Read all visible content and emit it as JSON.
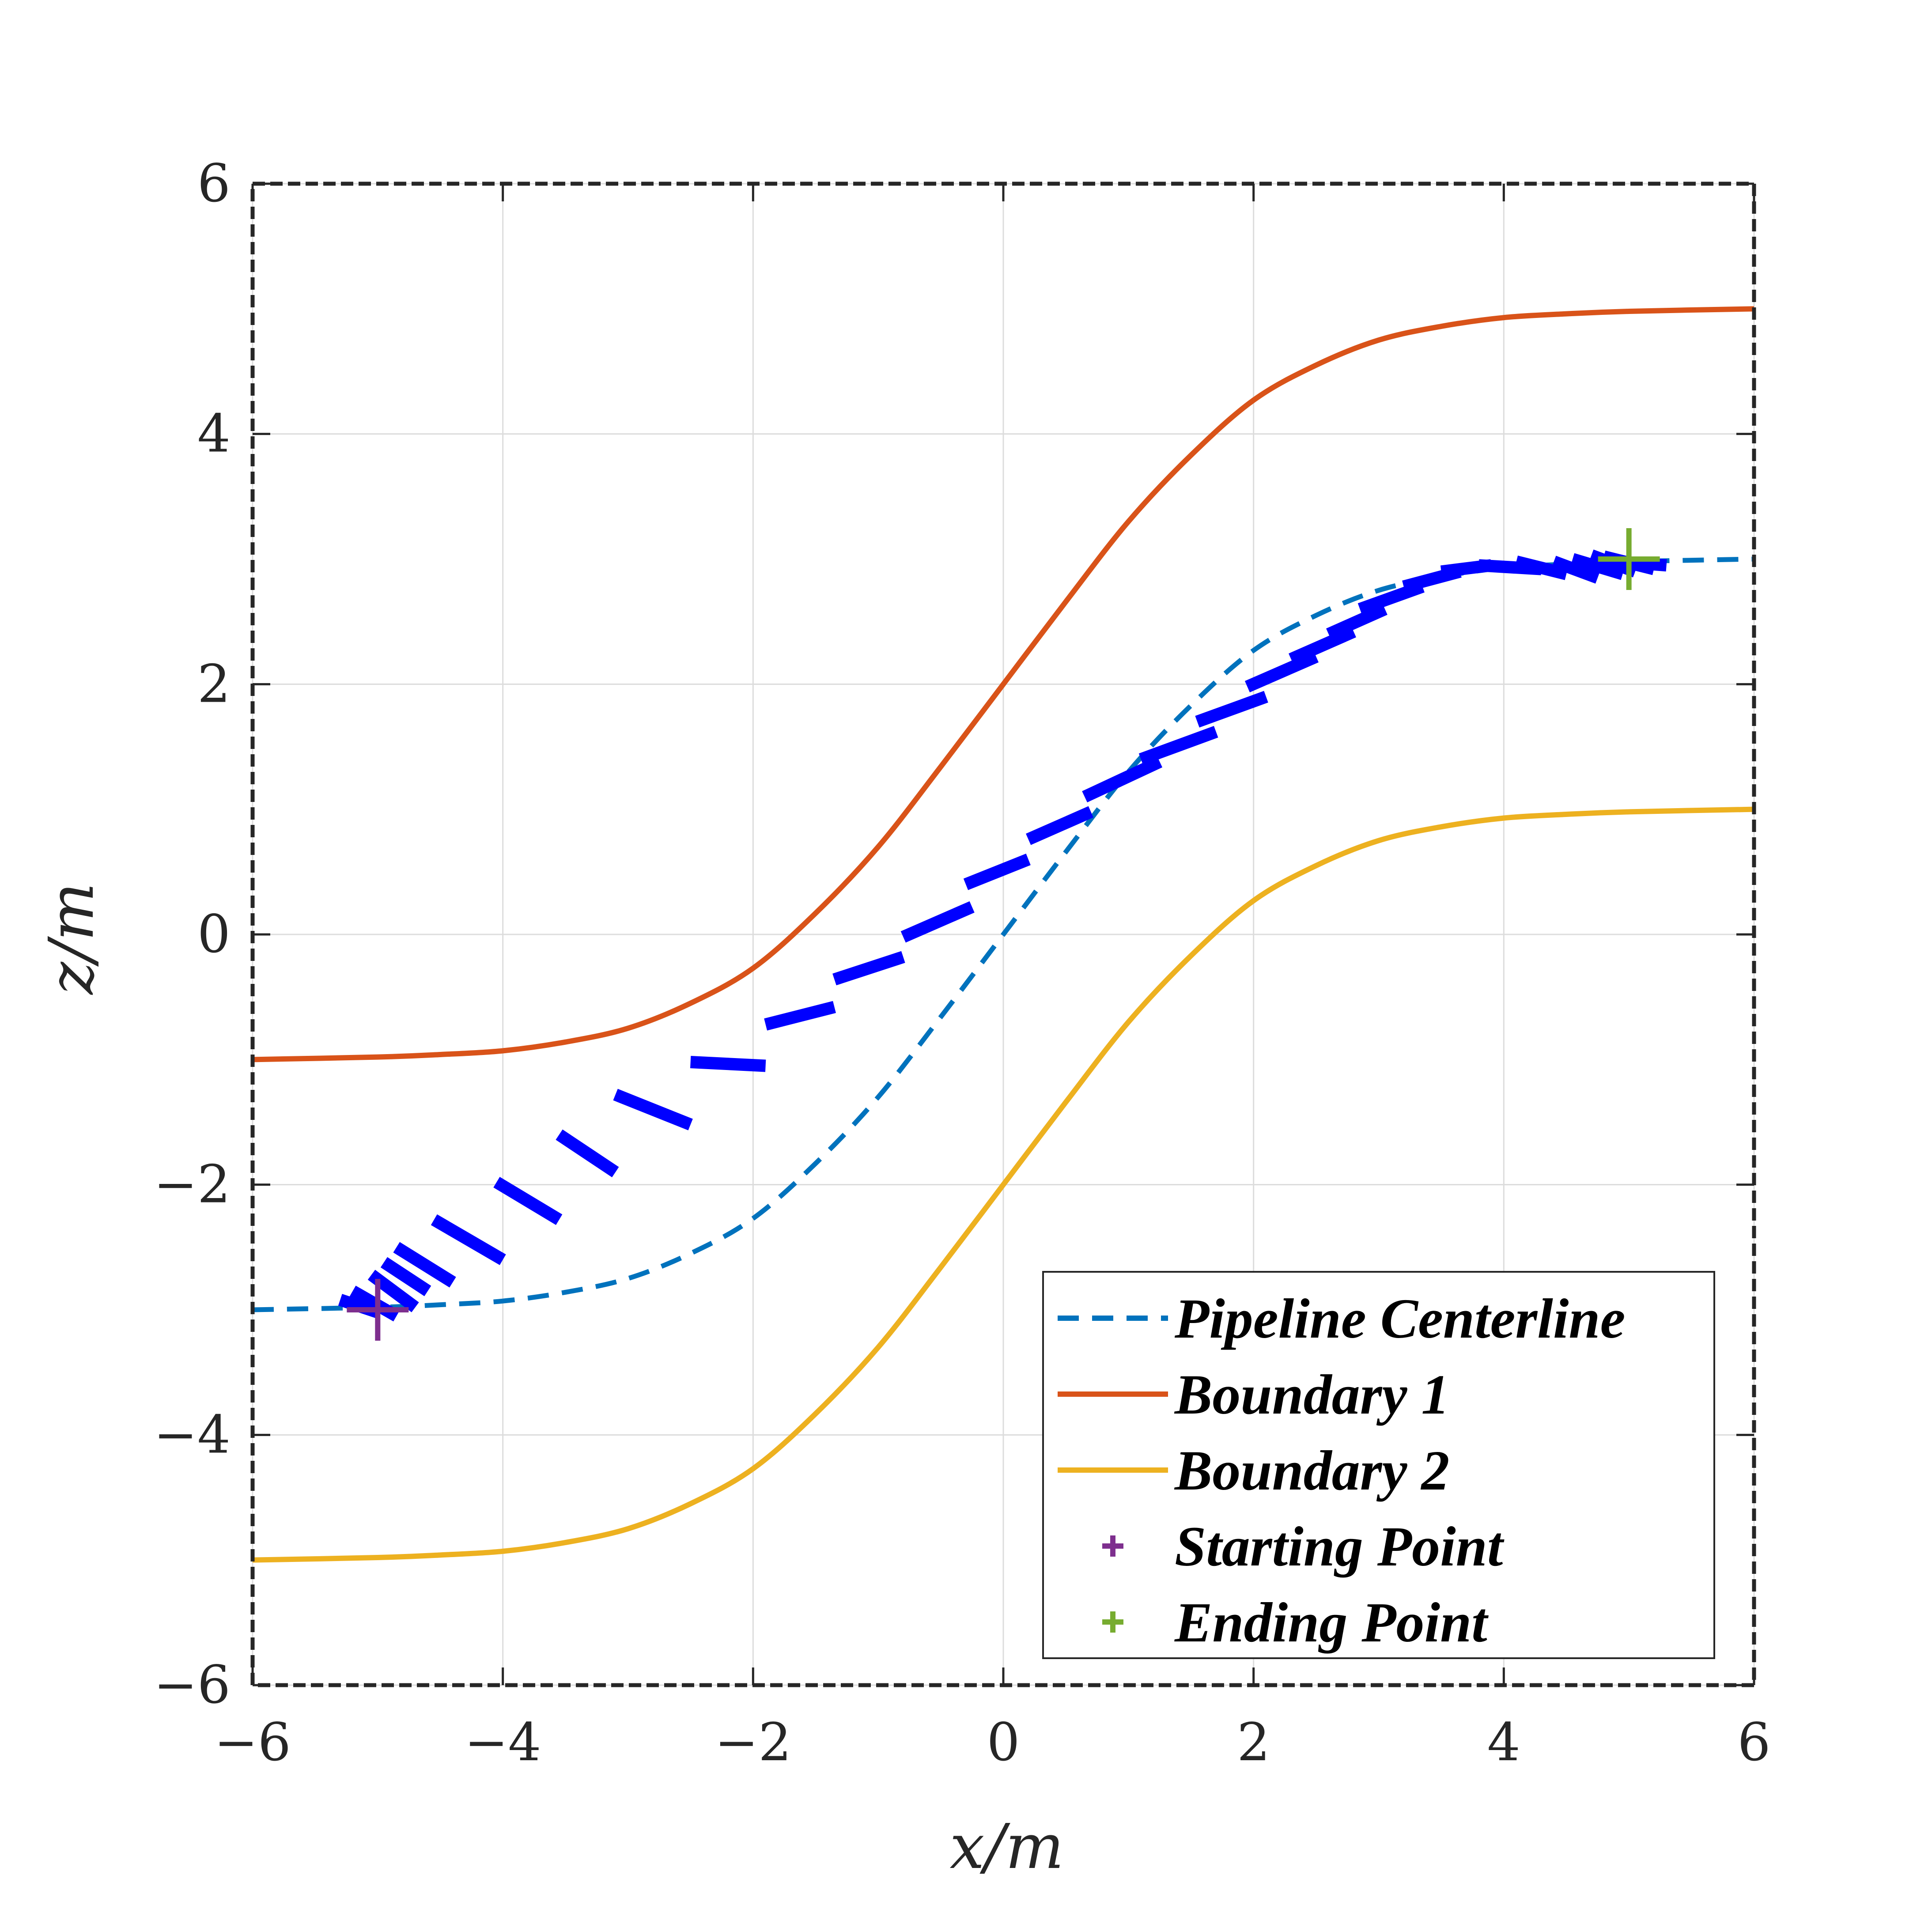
{
  "chart_data": {
    "type": "line",
    "title": "",
    "xlabel": "x/m",
    "ylabel": "z/m",
    "xlim": [
      -6,
      6
    ],
    "ylim": [
      -6,
      6
    ],
    "xticks": [
      -6,
      -4,
      -2,
      0,
      2,
      4,
      6
    ],
    "yticks": [
      -6,
      -4,
      -2,
      0,
      2,
      4,
      6
    ],
    "xtick_labels": [
      "−6",
      "−4",
      "−2",
      "0",
      "2",
      "4",
      "6"
    ],
    "ytick_labels": [
      "−6",
      "−4",
      "−2",
      "0",
      "2",
      "4",
      "6"
    ],
    "grid": true,
    "legend_position": "bottom-right",
    "series": [
      {
        "name": "Pipeline Centerline",
        "color": "#0072BD",
        "style": "dashed",
        "x": [
          -6,
          -5,
          -4.5,
          -4,
          -3.5,
          -3,
          -2.5,
          -2,
          -1.5,
          -1,
          -0.5,
          0,
          0.5,
          1,
          1.5,
          2,
          2.5,
          3,
          3.5,
          4,
          4.5,
          5,
          6
        ],
        "y": [
          -3.0,
          -2.98,
          -2.96,
          -2.93,
          -2.86,
          -2.75,
          -2.55,
          -2.27,
          -1.83,
          -1.3,
          -0.66,
          0.0,
          0.66,
          1.3,
          1.83,
          2.27,
          2.55,
          2.75,
          2.86,
          2.93,
          2.96,
          2.98,
          3.0
        ]
      },
      {
        "name": "Boundary 1",
        "color": "#D95319",
        "style": "solid",
        "x": [
          -6,
          -5,
          -4.5,
          -4,
          -3.5,
          -3,
          -2.5,
          -2,
          -1.5,
          -1,
          -0.5,
          0,
          0.5,
          1,
          1.5,
          2,
          2.5,
          3,
          3.5,
          4,
          4.5,
          5,
          6
        ],
        "y": [
          -1.0,
          -0.98,
          -0.96,
          -0.93,
          -0.86,
          -0.75,
          -0.55,
          -0.27,
          0.17,
          0.7,
          1.34,
          2.0,
          2.66,
          3.3,
          3.83,
          4.27,
          4.55,
          4.75,
          4.86,
          4.93,
          4.96,
          4.98,
          5.0
        ]
      },
      {
        "name": "Boundary 2",
        "color": "#EDB120",
        "style": "solid",
        "x": [
          -6,
          -5,
          -4.5,
          -4,
          -3.5,
          -3,
          -2.5,
          -2,
          -1.5,
          -1,
          -0.5,
          0,
          0.5,
          1,
          1.5,
          2,
          2.5,
          3,
          3.5,
          4,
          4.5,
          5,
          6
        ],
        "y": [
          -5.0,
          -4.98,
          -4.96,
          -4.93,
          -4.86,
          -4.75,
          -4.55,
          -4.27,
          -3.83,
          -3.3,
          -2.66,
          -2.0,
          -1.34,
          -0.7,
          -0.17,
          0.27,
          0.55,
          0.75,
          0.86,
          0.93,
          0.96,
          0.98,
          1.0
        ]
      },
      {
        "name": "Starting Point",
        "color": "#7E2F8E",
        "marker": "+",
        "x": [
          -5
        ],
        "y": [
          -3
        ]
      },
      {
        "name": "Ending Point",
        "color": "#77AC30",
        "marker": "+",
        "x": [
          5
        ],
        "y": [
          3
        ]
      }
    ],
    "trajectory_segments": {
      "color": "#0000FF",
      "style": "dashed-thick",
      "segments": [
        [
          -5.3,
          -2.92,
          -5.0,
          -3.02
        ],
        [
          -5.2,
          -2.85,
          -4.85,
          -3.05
        ],
        [
          -5.05,
          -2.72,
          -4.7,
          -2.98
        ],
        [
          -4.95,
          -2.62,
          -4.6,
          -2.85
        ],
        [
          -4.85,
          -2.5,
          -4.4,
          -2.78
        ],
        [
          -4.55,
          -2.28,
          -4.0,
          -2.6
        ],
        [
          -4.05,
          -1.98,
          -3.55,
          -2.28
        ],
        [
          -3.55,
          -1.6,
          -3.1,
          -1.9
        ],
        [
          -3.1,
          -1.28,
          -2.5,
          -1.52
        ],
        [
          -2.5,
          -1.02,
          -1.9,
          -1.05
        ],
        [
          -1.9,
          -0.72,
          -1.35,
          -0.58
        ],
        [
          -1.35,
          -0.36,
          -0.8,
          -0.18
        ],
        [
          -0.8,
          -0.02,
          -0.25,
          0.22
        ],
        [
          -0.3,
          0.4,
          0.2,
          0.6
        ],
        [
          0.2,
          0.76,
          0.7,
          0.98
        ],
        [
          0.65,
          1.1,
          1.25,
          1.38
        ],
        [
          1.1,
          1.4,
          1.7,
          1.62
        ],
        [
          1.55,
          1.7,
          2.1,
          1.9
        ],
        [
          1.95,
          1.98,
          2.5,
          2.22
        ],
        [
          2.3,
          2.2,
          2.8,
          2.42
        ],
        [
          2.6,
          2.4,
          3.05,
          2.6
        ],
        [
          2.85,
          2.6,
          3.35,
          2.78
        ],
        [
          3.2,
          2.78,
          3.65,
          2.9
        ],
        [
          3.5,
          2.9,
          3.9,
          2.95
        ],
        [
          3.8,
          2.95,
          4.3,
          2.92
        ],
        [
          4.1,
          2.98,
          4.5,
          2.88
        ],
        [
          4.4,
          2.98,
          4.75,
          2.85
        ],
        [
          4.55,
          3.0,
          4.95,
          2.88
        ],
        [
          4.7,
          3.03,
          5.05,
          2.9
        ],
        [
          4.8,
          3.02,
          5.2,
          2.92
        ],
        [
          4.9,
          2.98,
          5.3,
          2.95
        ]
      ]
    }
  }
}
